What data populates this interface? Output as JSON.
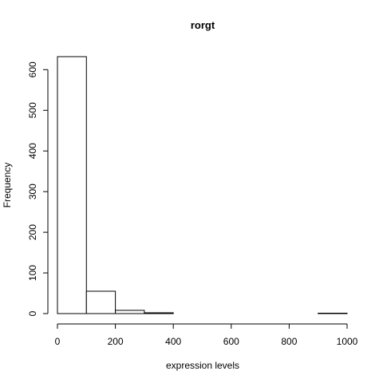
{
  "chart_data": {
    "type": "bar",
    "title": "rorgt",
    "xlabel": "expression levels",
    "ylabel": "Frequency",
    "xlim": [
      0,
      1000
    ],
    "ylim": [
      0,
      632
    ],
    "bins": [
      {
        "start": 0,
        "end": 100,
        "count": 632
      },
      {
        "start": 100,
        "end": 200,
        "count": 55
      },
      {
        "start": 200,
        "end": 300,
        "count": 8
      },
      {
        "start": 300,
        "end": 400,
        "count": 2
      },
      {
        "start": 400,
        "end": 500,
        "count": 0
      },
      {
        "start": 500,
        "end": 600,
        "count": 0
      },
      {
        "start": 600,
        "end": 700,
        "count": 0
      },
      {
        "start": 700,
        "end": 800,
        "count": 0
      },
      {
        "start": 800,
        "end": 900,
        "count": 0
      },
      {
        "start": 900,
        "end": 1000,
        "count": 1
      }
    ],
    "x_ticks": [
      0,
      200,
      400,
      600,
      800,
      1000
    ],
    "y_ticks": [
      0,
      100,
      200,
      300,
      400,
      500,
      600
    ],
    "grid": false,
    "legend": "none"
  }
}
